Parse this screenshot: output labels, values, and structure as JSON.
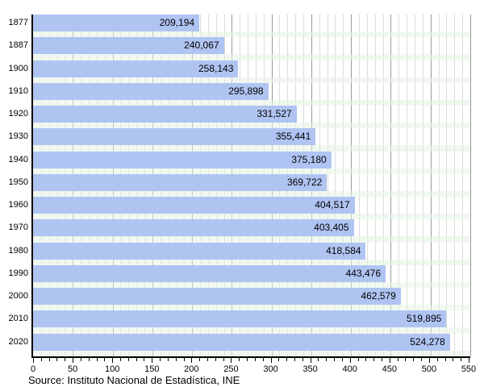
{
  "chart_data": {
    "type": "bar",
    "orientation": "horizontal",
    "title": "",
    "categories": [
      "1877",
      "1887",
      "1900",
      "1910",
      "1920",
      "1930",
      "1940",
      "1950",
      "1960",
      "1970",
      "1980",
      "1990",
      "2000",
      "2010",
      "2020"
    ],
    "values": [
      209194,
      240067,
      258143,
      295898,
      331527,
      355441,
      375180,
      369722,
      404517,
      403405,
      418584,
      443476,
      462579,
      519895,
      524278
    ],
    "value_labels": [
      "209,194",
      "240,067",
      "258,143",
      "295,898",
      "331,527",
      "355,441",
      "375,180",
      "369,722",
      "404,517",
      "403,405",
      "418,584",
      "443,476",
      "462,579",
      "519,895",
      "524,278"
    ],
    "x_axis_ticks": [
      0,
      50,
      100,
      150,
      200,
      250,
      300,
      350,
      400,
      450,
      500,
      550
    ],
    "x_axis_tick_labels": [
      "0",
      "50",
      "100",
      "150",
      "200",
      "250",
      "300",
      "350",
      "400",
      "450",
      "500",
      "550"
    ],
    "xlim": [
      0,
      550
    ],
    "value_divisor": 1000,
    "grid": {
      "minor_step": 10,
      "major_step": 50,
      "direction": "vertical"
    },
    "legend": "none",
    "source": "Source: Instituto Nacional de Estadística, INE",
    "colors": {
      "bar": "#b0c4f2",
      "grid_minor": "#dcdcdc",
      "grid_major": "#9a9a9a",
      "axis": "#000000",
      "label_text": "#000000",
      "row_strip": "#e9f4e9"
    }
  }
}
